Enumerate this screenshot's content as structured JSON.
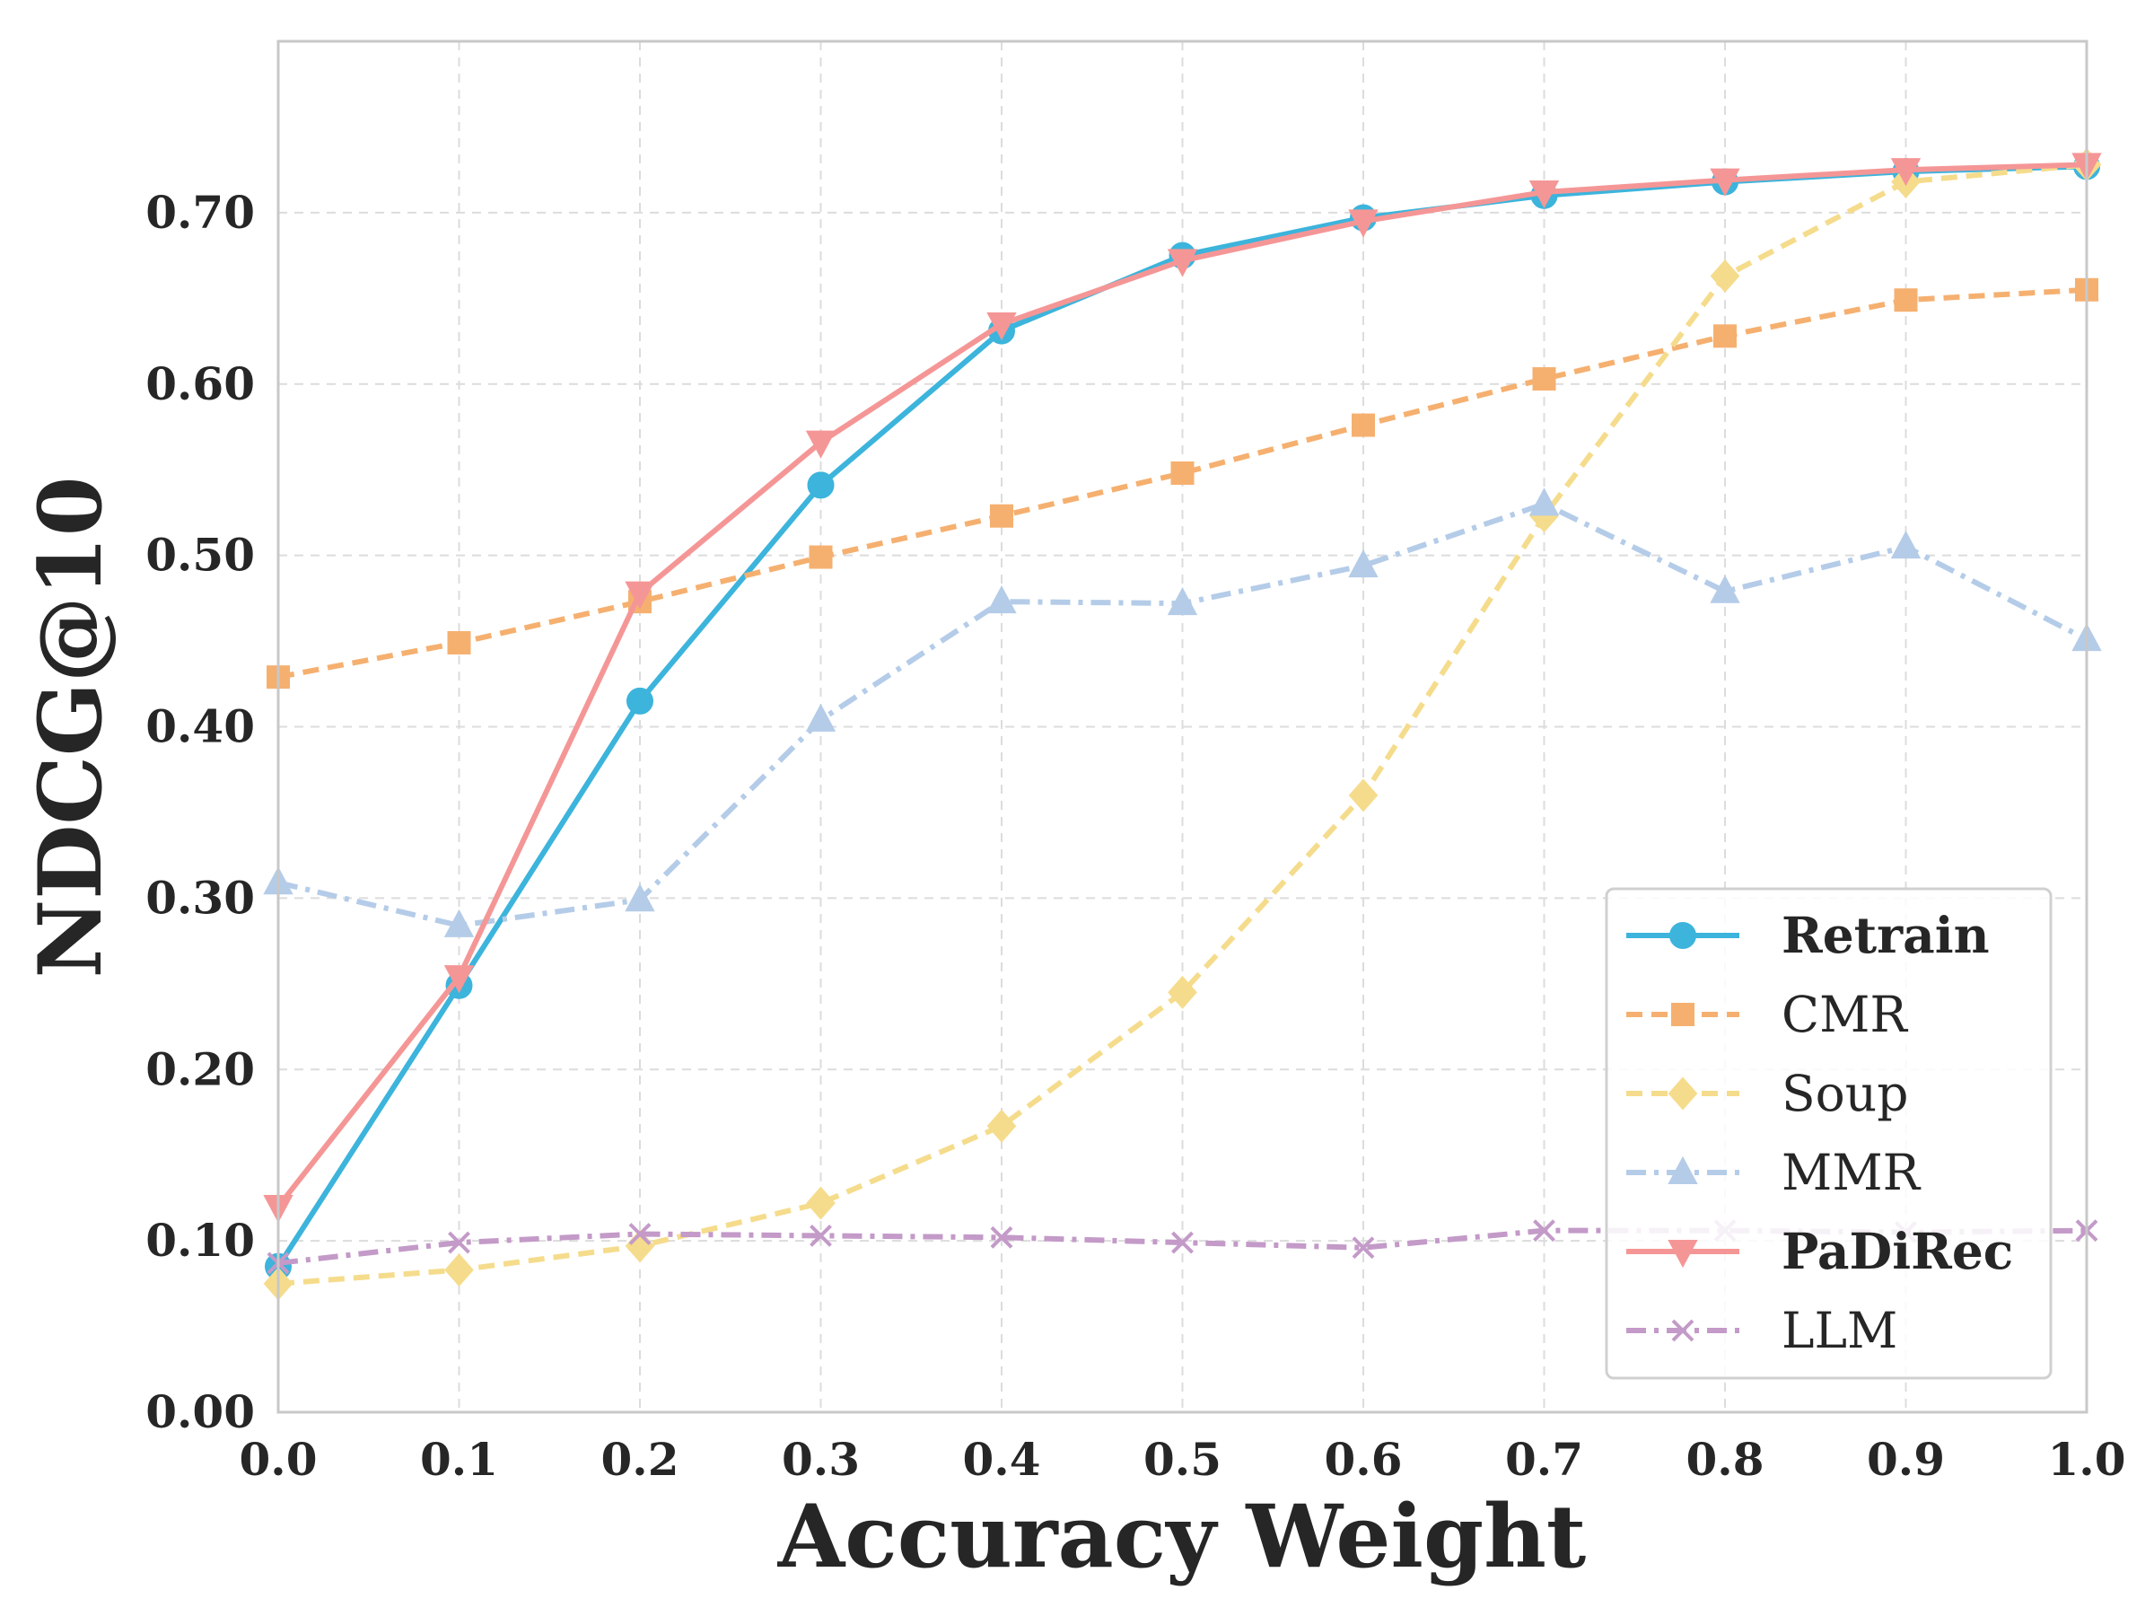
{
  "chart_data": {
    "type": "line",
    "title": "",
    "xlabel": "Accuracy Weight",
    "ylabel": "NDCG@10",
    "xlim": [
      0.0,
      1.0
    ],
    "ylim": [
      0.0,
      0.8
    ],
    "x_ticks": [
      "0.0",
      "0.1",
      "0.2",
      "0.3",
      "0.4",
      "0.5",
      "0.6",
      "0.7",
      "0.8",
      "0.9",
      "1.0"
    ],
    "y_ticks": [
      "0.00",
      "0.10",
      "0.20",
      "0.30",
      "0.40",
      "0.50",
      "0.60",
      "0.70"
    ],
    "grid": true,
    "legend_position": "bottom-right",
    "x": [
      0.0,
      0.1,
      0.2,
      0.3,
      0.4,
      0.5,
      0.6,
      0.7,
      0.8,
      0.9,
      1.0
    ],
    "series": [
      {
        "name": "Retrain",
        "bold": true,
        "color": "#3cb4dc",
        "dash": "solid",
        "marker": "circle",
        "values": [
          0.085,
          0.249,
          0.415,
          0.541,
          0.631,
          0.675,
          0.697,
          0.71,
          0.718,
          0.724,
          0.727
        ]
      },
      {
        "name": "CMR",
        "bold": false,
        "color": "#f5b070",
        "dash": "dashed",
        "marker": "square",
        "values": [
          0.429,
          0.449,
          0.473,
          0.499,
          0.523,
          0.548,
          0.576,
          0.603,
          0.628,
          0.649,
          0.655
        ]
      },
      {
        "name": "Soup",
        "bold": false,
        "color": "#f5dc8c",
        "dash": "dashed",
        "marker": "diamond",
        "values": [
          0.075,
          0.083,
          0.097,
          0.122,
          0.167,
          0.245,
          0.36,
          0.523,
          0.663,
          0.718,
          0.728
        ]
      },
      {
        "name": "MMR",
        "bold": false,
        "color": "#b4cce8",
        "dash": "dashdot",
        "marker": "triangle-up",
        "values": [
          0.309,
          0.284,
          0.299,
          0.404,
          0.473,
          0.472,
          0.494,
          0.53,
          0.479,
          0.505,
          0.451
        ]
      },
      {
        "name": "PaDiRec",
        "bold": true,
        "color": "#f59696",
        "dash": "solid",
        "marker": "triangle-down",
        "values": [
          0.12,
          0.254,
          0.478,
          0.566,
          0.635,
          0.672,
          0.695,
          0.712,
          0.719,
          0.725,
          0.728
        ]
      },
      {
        "name": "LLM",
        "bold": false,
        "color": "#c39ac8",
        "dash": "dashdot",
        "marker": "x",
        "values": [
          0.087,
          0.099,
          0.104,
          0.103,
          0.102,
          0.099,
          0.096,
          0.106,
          0.106,
          0.105,
          0.106
        ]
      }
    ]
  }
}
